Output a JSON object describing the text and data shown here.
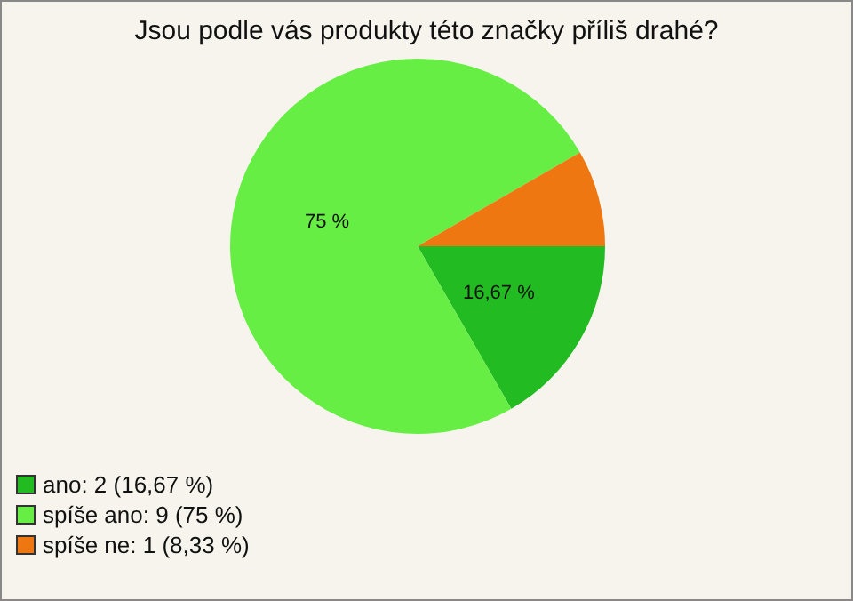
{
  "chart_data": {
    "type": "pie",
    "title": "Jsou podle vás produkty této značky příliš drahé?",
    "categories": [
      "ano: 2 (16,67 %)",
      "spíše ano: 9 (75 %)",
      "spíše ne: 1 (8,33 %)"
    ],
    "values": [
      16.67,
      75,
      8.33
    ],
    "colors": [
      "#22bb22",
      "#66ee44",
      "#ee7711"
    ],
    "value_labels": [
      "16,67 %",
      "75 %",
      null
    ],
    "legend": "bottom left"
  }
}
